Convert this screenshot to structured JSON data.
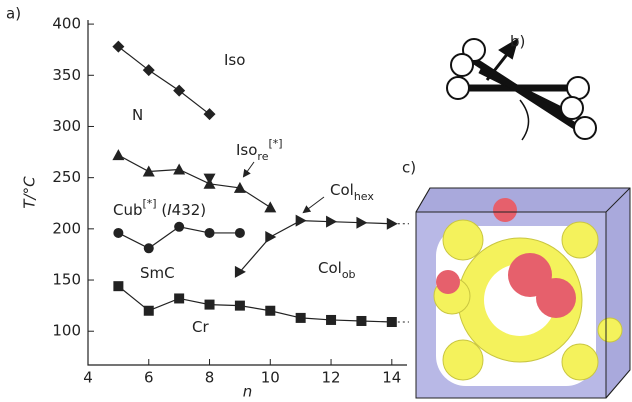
{
  "chart_data": {
    "type": "line",
    "x_label": "n",
    "y_label": "T/°C",
    "panel_labels": [
      "a)",
      "b)",
      "c)"
    ],
    "xlim": [
      4,
      14.5
    ],
    "xticks": [
      4,
      6,
      8,
      10,
      12,
      14
    ],
    "ylim": [
      67,
      404
    ],
    "yticks": [
      100,
      150,
      200,
      250,
      300,
      350,
      400
    ],
    "color": "#222222",
    "series": [
      {
        "marker": "diamond",
        "x": [
          5,
          6,
          7,
          8
        ],
        "values": [
          378,
          355,
          335,
          312
        ]
      },
      {
        "marker": "triangle-up",
        "x": [
          5,
          6,
          7,
          8,
          9,
          10
        ],
        "values": [
          272,
          256,
          258,
          244,
          240,
          221
        ]
      },
      {
        "marker": "triangle-down",
        "x": [
          8
        ],
        "values": [
          249
        ]
      },
      {
        "marker": "circle",
        "x": [
          5,
          6,
          7,
          8,
          9
        ],
        "values": [
          196,
          181,
          202,
          196,
          196
        ]
      },
      {
        "marker": "triangle-right",
        "x": [
          9,
          10,
          11,
          12,
          13,
          14
        ],
        "values": [
          158,
          192,
          208,
          207,
          206,
          205
        ]
      },
      {
        "marker": "square",
        "x": [
          5,
          6,
          7,
          8,
          9,
          10,
          11,
          12,
          13,
          14
        ],
        "values": [
          144,
          120,
          132,
          126,
          125,
          120,
          113,
          111,
          110,
          109
        ]
      }
    ],
    "annotations": [
      [
        {
          "text": "Iso"
        }
      ],
      [
        {
          "text": "N"
        }
      ],
      [
        {
          "text": "Iso"
        },
        {
          "text": "re",
          "style": "sub"
        },
        {
          "text": "[*]",
          "style": "sup"
        }
      ],
      [
        {
          "text": "Cub"
        },
        {
          "text": "[*]",
          "style": "sup"
        },
        {
          "text": " ("
        },
        {
          "text": "I",
          "style": "italic"
        },
        {
          "text": "432)"
        }
      ],
      [
        {
          "text": "SmC"
        }
      ],
      [
        {
          "text": "Cr"
        }
      ],
      [
        {
          "text": "Col"
        },
        {
          "text": "hex",
          "style": "sub"
        }
      ],
      [
        {
          "text": "Col"
        },
        {
          "text": "ob",
          "style": "sub"
        }
      ]
    ]
  }
}
